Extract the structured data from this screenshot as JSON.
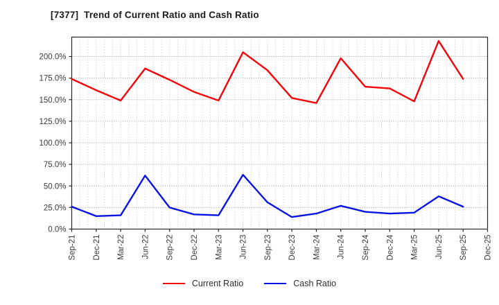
{
  "window": {
    "background": "#ffffff"
  },
  "chart_data": {
    "type": "line",
    "title": "[7377]  Trend of Current Ratio and Cash Ratio",
    "categories": [
      "Sep-21",
      "Dec-21",
      "Mar-22",
      "Jun-22",
      "Sep-22",
      "Dec-22",
      "Mar-23",
      "Jun-23",
      "Sep-23",
      "Dec-23",
      "Mar-24",
      "Jun-24",
      "Sep-24",
      "Dec-24",
      "Mar-25",
      "Jun-25",
      "Sep-25",
      "Dec-25"
    ],
    "series": [
      {
        "name": "Current Ratio",
        "color": "#f50008",
        "values": [
          174,
          161,
          149,
          186,
          173,
          159,
          149,
          205,
          184,
          152,
          146,
          198,
          165,
          163,
          148,
          218,
          174,
          null
        ]
      },
      {
        "name": "Cash Ratio",
        "color": "#0711e6",
        "values": [
          26,
          15,
          16,
          62,
          25,
          17,
          16,
          63,
          31,
          14,
          18,
          27,
          20,
          18,
          19,
          38,
          26,
          null
        ]
      }
    ],
    "y_ticks": [
      {
        "value": 0,
        "label": "0.0%"
      },
      {
        "value": 25,
        "label": "25.0%"
      },
      {
        "value": 50,
        "label": "50.0%"
      },
      {
        "value": 75,
        "label": "75.0%"
      },
      {
        "value": 100,
        "label": "100.0%"
      },
      {
        "value": 125,
        "label": "125.0%"
      },
      {
        "value": 150,
        "label": "150.0%"
      },
      {
        "value": 175,
        "label": "175.0%"
      },
      {
        "value": 200,
        "label": "200.0%"
      }
    ],
    "ylim": [
      0,
      222.5
    ],
    "xlabel": "",
    "ylabel": "",
    "grid": true,
    "minor_x_divisions_per_category": 3,
    "legend_position": "bottom",
    "axis_color": "#262626",
    "tick_label_color": "#3a3a3a",
    "h_grid_color": "#999999",
    "v_grid_color": "#c4c4c4"
  }
}
